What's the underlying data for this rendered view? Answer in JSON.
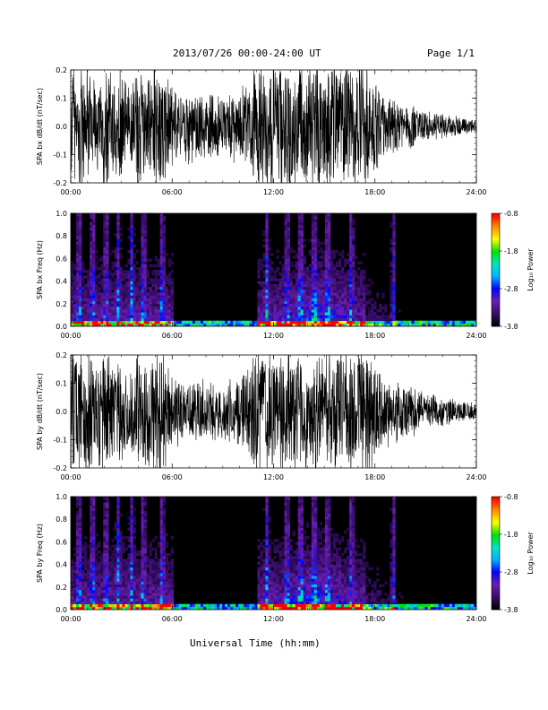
{
  "header": {
    "title": "2013/07/26  00:00-24:00 UT",
    "page": "Page 1/1"
  },
  "footer": {
    "xlabel": "Universal Time (hh:mm)"
  },
  "x_ticks": [
    "00:00",
    "06:00",
    "12:00",
    "18:00",
    "24:00"
  ],
  "colorbar": {
    "label": "Log₁₀ Power",
    "ticks": [
      "-0.8",
      "-1.8",
      "-2.8",
      "-3.8"
    ],
    "tick_values": [
      -0.8,
      -1.8,
      -2.8,
      -3.8
    ],
    "range": [
      -3.8,
      -0.8
    ],
    "colors": [
      "#000000",
      "#3a0d6e",
      "#6a1fb0",
      "#0000ff",
      "#00b4ff",
      "#00e5c0",
      "#00e000",
      "#ffff00",
      "#ff8c00",
      "#ff0000"
    ]
  },
  "chart_data": [
    {
      "type": "line",
      "ylabel": "SPA bx dB/dt (nT/sec)",
      "xlim": [
        0,
        24
      ],
      "ylim": [
        -0.2,
        0.2
      ],
      "y_ticks": [
        "0.2",
        "0.1",
        "0.0",
        "-0.1",
        "-0.2"
      ],
      "y_tick_values": [
        0.2,
        0.1,
        0.0,
        -0.1,
        -0.2
      ],
      "x_ticks": [
        "00:00",
        "06:00",
        "12:00",
        "18:00",
        "24:00"
      ],
      "envelope": {
        "hours": [
          0,
          0.5,
          1,
          1.5,
          2,
          2.5,
          3,
          3.5,
          4,
          4.5,
          5,
          5.5,
          6,
          6.5,
          7,
          7.5,
          8,
          8.5,
          9,
          9.5,
          10,
          10.5,
          11,
          11.5,
          12,
          12.5,
          13,
          13.5,
          14,
          14.5,
          15,
          15.5,
          16,
          16.5,
          17,
          17.5,
          18,
          18.5,
          19,
          19.5,
          20,
          20.5,
          21,
          21.5,
          22,
          22.5,
          23,
          23.5,
          24
        ],
        "amplitude": [
          0.2,
          0.2,
          0.2,
          0.14,
          0.2,
          0.16,
          0.2,
          0.13,
          0.2,
          0.15,
          0.2,
          0.2,
          0.12,
          0.1,
          0.12,
          0.1,
          0.11,
          0.1,
          0.1,
          0.11,
          0.12,
          0.14,
          0.2,
          0.2,
          0.2,
          0.2,
          0.2,
          0.2,
          0.2,
          0.2,
          0.2,
          0.2,
          0.2,
          0.2,
          0.18,
          0.2,
          0.14,
          0.12,
          0.1,
          0.08,
          0.07,
          0.06,
          0.05,
          0.045,
          0.04,
          0.035,
          0.03,
          0.025,
          0.02
        ]
      }
    },
    {
      "type": "heatmap",
      "ylabel": "SPA bx Freq (Hz)",
      "xlim": [
        0,
        24
      ],
      "ylim": [
        0.0,
        1.0
      ],
      "y_ticks": [
        "1.0",
        "0.8",
        "0.6",
        "0.4",
        "0.2",
        "0.0"
      ],
      "y_tick_values": [
        1.0,
        0.8,
        0.6,
        0.4,
        0.2,
        0.0
      ],
      "x_ticks": [
        "00:00",
        "06:00",
        "12:00",
        "18:00",
        "24:00"
      ],
      "z_range": [
        -3.8,
        -0.8
      ],
      "band_hours": [
        0.5,
        1.3,
        2.1,
        2.8,
        3.6,
        4.3,
        5.4,
        11.6,
        12.8,
        13.6,
        14.4,
        15.2,
        16.6,
        19.1
      ],
      "active_hours": [
        [
          0,
          6
        ],
        [
          11,
          17.5
        ]
      ]
    },
    {
      "type": "line",
      "ylabel": "SPA by dB/dt (nT/sec)",
      "xlim": [
        0,
        24
      ],
      "ylim": [
        -0.2,
        0.2
      ],
      "y_ticks": [
        "0.2",
        "0.1",
        "0.0",
        "-0.1",
        "-0.2"
      ],
      "y_tick_values": [
        0.2,
        0.1,
        0.0,
        -0.1,
        -0.2
      ],
      "x_ticks": [
        "00:00",
        "06:00",
        "12:00",
        "18:00",
        "24:00"
      ],
      "envelope": {
        "hours": [
          0,
          0.5,
          1,
          1.5,
          2,
          2.5,
          3,
          3.5,
          4,
          4.5,
          5,
          5.5,
          6,
          6.5,
          7,
          7.5,
          8,
          8.5,
          9,
          9.5,
          10,
          10.5,
          11,
          11.5,
          12,
          12.5,
          13,
          13.5,
          14,
          14.5,
          15,
          15.5,
          16,
          16.5,
          17,
          17.5,
          18,
          18.5,
          19,
          19.5,
          20,
          20.5,
          21,
          21.5,
          22,
          22.5,
          23,
          23.5,
          24
        ],
        "amplitude": [
          0.2,
          0.2,
          0.2,
          0.16,
          0.2,
          0.17,
          0.2,
          0.14,
          0.2,
          0.16,
          0.2,
          0.2,
          0.12,
          0.1,
          0.1,
          0.1,
          0.09,
          0.09,
          0.1,
          0.1,
          0.12,
          0.14,
          0.2,
          0.2,
          0.2,
          0.2,
          0.2,
          0.2,
          0.2,
          0.2,
          0.2,
          0.2,
          0.2,
          0.2,
          0.18,
          0.2,
          0.15,
          0.12,
          0.1,
          0.09,
          0.08,
          0.07,
          0.06,
          0.05,
          0.045,
          0.04,
          0.035,
          0.03,
          0.03
        ]
      }
    },
    {
      "type": "heatmap",
      "ylabel": "SPA by Freq (Hz)",
      "xlim": [
        0,
        24
      ],
      "ylim": [
        0.0,
        1.0
      ],
      "y_ticks": [
        "1.0",
        "0.8",
        "0.6",
        "0.4",
        "0.2",
        "0.0"
      ],
      "y_tick_values": [
        1.0,
        0.8,
        0.6,
        0.4,
        0.2,
        0.0
      ],
      "x_ticks": [
        "00:00",
        "06:00",
        "12:00",
        "18:00",
        "24:00"
      ],
      "z_range": [
        -3.8,
        -0.8
      ],
      "band_hours": [
        0.5,
        1.3,
        2.1,
        2.8,
        3.6,
        4.3,
        5.4,
        11.6,
        12.8,
        13.6,
        14.4,
        15.2,
        16.6,
        19.1
      ],
      "active_hours": [
        [
          0,
          6
        ],
        [
          11,
          17.5
        ]
      ]
    }
  ]
}
